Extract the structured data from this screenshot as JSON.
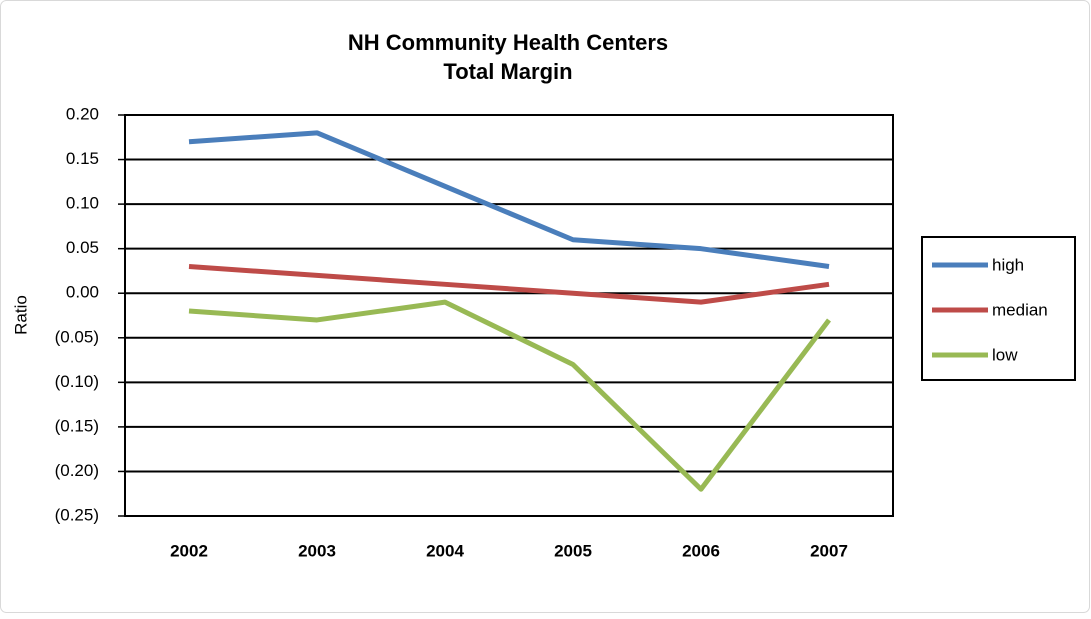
{
  "chart_data": {
    "type": "line",
    "title": "NH Community Health Centers",
    "subtitle": "Total Margin",
    "y_label": "Ratio",
    "categories": [
      "2002",
      "2003",
      "2004",
      "2005",
      "2006",
      "2007"
    ],
    "series": [
      {
        "name": "high",
        "color": "#4a7ebb",
        "values": [
          0.17,
          0.18,
          0.12,
          0.06,
          0.05,
          0.03
        ]
      },
      {
        "name": "median",
        "color": "#be4b48",
        "values": [
          0.03,
          0.02,
          0.01,
          0.0,
          -0.01,
          0.01
        ]
      },
      {
        "name": "low",
        "color": "#98b954",
        "values": [
          -0.02,
          -0.03,
          -0.01,
          -0.08,
          -0.22,
          -0.03
        ]
      }
    ],
    "ylim": [
      -0.25,
      0.2
    ],
    "yticks": [
      {
        "value": -0.25,
        "label": "(0.25)"
      },
      {
        "value": -0.2,
        "label": "(0.20)"
      },
      {
        "value": -0.15,
        "label": "(0.15)"
      },
      {
        "value": -0.1,
        "label": "(0.10)"
      },
      {
        "value": -0.05,
        "label": "(0.05)"
      },
      {
        "value": 0,
        "label": "0.00"
      },
      {
        "value": 0.05,
        "label": "0.05"
      },
      {
        "value": 0.1,
        "label": "0.10"
      },
      {
        "value": 0.15,
        "label": "0.15"
      },
      {
        "value": 0.2,
        "label": "0.20"
      }
    ],
    "grid": true,
    "legend": "right"
  }
}
